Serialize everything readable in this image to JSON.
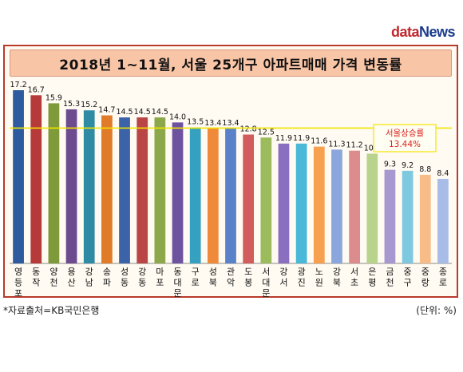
{
  "brand": {
    "part1": "data",
    "part2": "News"
  },
  "source_note": "*자료출처=KB국민은행",
  "unit_note": "(단위: %)",
  "chart_data": {
    "type": "bar",
    "title": "2018년 1~11월, 서울 25개구 아파트매매 가격 변동률",
    "categories": [
      "영등포",
      "동작",
      "양천",
      "용산",
      "강남",
      "송파",
      "성동",
      "강동",
      "마포",
      "동대문",
      "구로",
      "성북",
      "관악",
      "도봉",
      "서대문",
      "강서",
      "광진",
      "노원",
      "강북",
      "서초",
      "은평",
      "금천",
      "중구",
      "중랑",
      "종로"
    ],
    "values": [
      17.2,
      16.7,
      15.9,
      15.3,
      15.2,
      14.7,
      14.5,
      14.5,
      14.5,
      14.0,
      13.5,
      13.4,
      13.4,
      12.8,
      12.5,
      11.9,
      11.9,
      11.6,
      11.3,
      11.2,
      10.9,
      9.3,
      9.2,
      8.8,
      8.4
    ],
    "colors": [
      "#2e5b9f",
      "#b63a3a",
      "#7f9a3a",
      "#6c4b8f",
      "#2f8ba4",
      "#e07b2a",
      "#3c62a8",
      "#b94545",
      "#8ca84a",
      "#6d52a0",
      "#35a0c0",
      "#ee8a3a",
      "#5a82c8",
      "#d25c5c",
      "#9cbb5c",
      "#8a6ec0",
      "#4ab8d8",
      "#f6a050",
      "#8aa6dc",
      "#dc8c8c",
      "#b8d48c",
      "#a898d0",
      "#7ec8e0",
      "#f8bc88",
      "#a8bce8"
    ],
    "reference": {
      "value": 13.44,
      "label_line1": "서울상승률",
      "label_line2": "13.44%",
      "color": "#f2e400"
    },
    "ylim": [
      0,
      18
    ],
    "grid": false
  }
}
